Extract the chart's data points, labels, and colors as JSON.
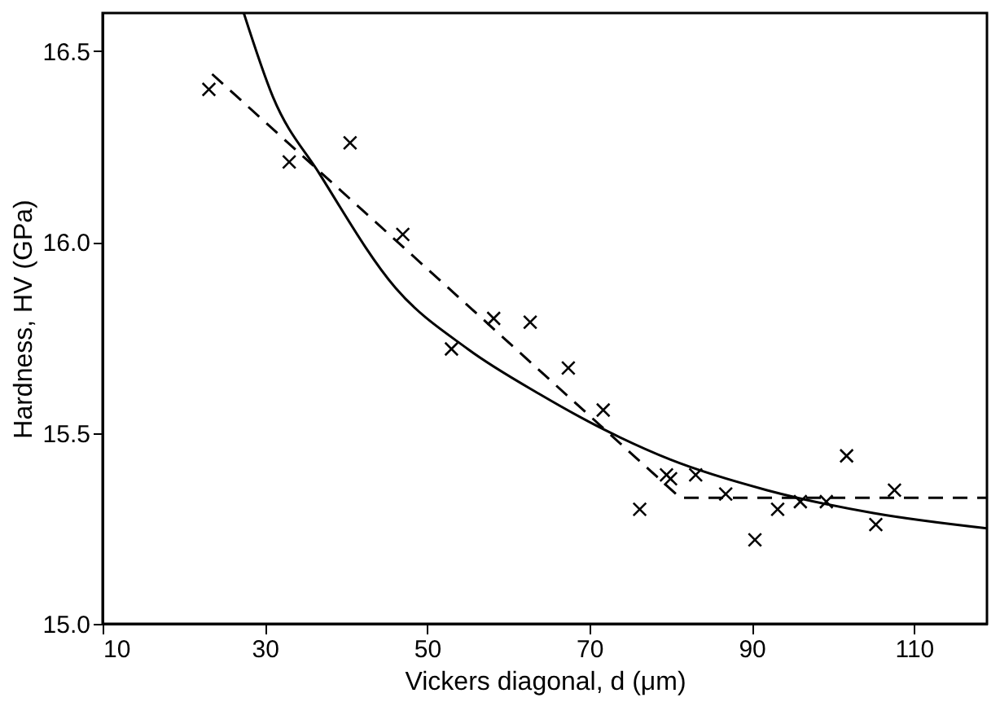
{
  "chart_data": {
    "type": "scatter",
    "xlabel": "Vickers diagonal, d (μm)",
    "ylabel": "Hardness, HV (GPa)",
    "xlim": [
      10,
      119
    ],
    "xticks": [
      10,
      30,
      50,
      70,
      90,
      110
    ],
    "ylim": [
      15.0,
      16.6
    ],
    "yticks": [
      {
        "value": 15.0,
        "label": "15.0"
      },
      {
        "value": 15.5,
        "label": "15.5"
      },
      {
        "value": 16.0,
        "label": "16.0"
      },
      {
        "value": 16.5,
        "label": "16.5"
      }
    ],
    "grid": false,
    "series": [
      {
        "marker": "cross",
        "color": "#000000",
        "x": [
          23.1,
          33.0,
          40.5,
          47.0,
          53.0,
          58.2,
          62.7,
          67.4,
          71.7,
          76.2,
          79.5,
          80.0,
          83.1,
          86.8,
          90.4,
          93.2,
          96.0,
          99.2,
          101.7,
          105.3,
          107.6
        ],
        "values": [
          16.4,
          16.21,
          16.26,
          16.02,
          15.72,
          15.8,
          15.79,
          15.67,
          15.56,
          15.3,
          15.39,
          15.38,
          15.39,
          15.34,
          15.22,
          15.3,
          15.32,
          15.32,
          15.44,
          15.26,
          15.35
        ]
      },
      {
        "type": "line",
        "line_style": "dashed",
        "color": "#000000",
        "x": [
          23.5,
          81.2,
          119
        ],
        "values": [
          16.44,
          15.33,
          15.33
        ]
      },
      {
        "type": "line",
        "line_style": "solid",
        "color": "#000000",
        "x": [
          27.4,
          31,
          36.7,
          46.1,
          55,
          64,
          71.7,
          80,
          91.9,
          105,
          119
        ],
        "values": [
          16.6,
          16.38,
          16.18,
          15.88,
          15.72,
          15.6,
          15.51,
          15.43,
          15.35,
          15.29,
          15.25
        ]
      }
    ]
  }
}
